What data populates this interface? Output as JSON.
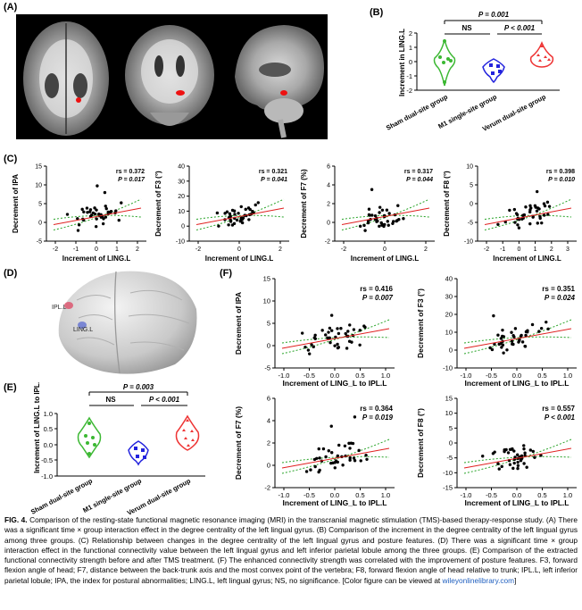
{
  "panels": {
    "A": "(A)",
    "B": "(B)",
    "C": "(C)",
    "D": "(D)",
    "E": "(E)",
    "F": "(F)"
  },
  "colors": {
    "green": "#3cb833",
    "blue": "#2222dd",
    "red": "#ee3333",
    "fitline": "#e02020",
    "ci": "#27a327"
  },
  "panel_b": {
    "ylabel": "Increment in LING.L",
    "yticks": [
      "-2",
      "-1",
      "0",
      "1",
      "2"
    ],
    "groups": [
      "Sham dual-site group",
      "M1 single-site group",
      "Verum dual-site group"
    ],
    "sig_top": "P = 0.001",
    "sig_left": "NS",
    "sig_right": "P < 0.001"
  },
  "panel_d": {
    "label1": "IPL.L",
    "label2": "LING.L"
  },
  "panel_e": {
    "ylabel": "Increment of LING.L to IPL.L",
    "yticks": [
      "1.0",
      "0.5",
      "0.0",
      "-0.5",
      "-1.0"
    ],
    "groups": [
      "Sham dual-site group",
      "M1 single-site group",
      "Verum dual-site group"
    ],
    "sig_top": "P = 0.003",
    "sig_left": "NS",
    "sig_right": "P < 0.001"
  },
  "panel_c": [
    {
      "ylabel": "Decrement of IPA",
      "xlabel": "Increment of LING.L",
      "yticks": [
        "15",
        "10",
        "5",
        "0",
        "-5"
      ],
      "xticks": [
        "-2",
        "-1",
        "0",
        "1",
        "2"
      ],
      "r": "rs = 0.372",
      "p": "P = 0.017"
    },
    {
      "ylabel": "Decrement of F3 (°)",
      "xlabel": "Increment of LING.L",
      "yticks": [
        "40",
        "30",
        "20",
        "10",
        "0",
        "-10"
      ],
      "xticks": [
        "-2",
        "0",
        "2"
      ],
      "r": "rs = 0.321",
      "p": "P = 0.041"
    },
    {
      "ylabel": "Decrement of F7 (%)",
      "xlabel": "Increment of LING.L",
      "yticks": [
        "6",
        "4",
        "2",
        "0",
        "-2"
      ],
      "xticks": [
        "-2",
        "0",
        "2"
      ],
      "r": "rs = 0.317",
      "p": "P = 0.044"
    },
    {
      "ylabel": "Decrement of F8 (°)",
      "xlabel": "Increment of LING.L",
      "yticks": [
        "10",
        "5",
        "0",
        "-5",
        "-10"
      ],
      "xticks": [
        "-2",
        "-1",
        "0",
        "1",
        "2",
        "3"
      ],
      "r": "rs = 0.398",
      "p": "P = 0.010"
    }
  ],
  "panel_f": [
    {
      "ylabel": "Decrement of IPA",
      "xlabel": "Increment of LING_L to IPL.L",
      "yticks": [
        "15",
        "10",
        "5",
        "0",
        "-5"
      ],
      "xticks": [
        "-1.0",
        "-0.5",
        "0.0",
        "0.5",
        "1.0"
      ],
      "r": "rs = 0.416",
      "p": "P = 0.007"
    },
    {
      "ylabel": "Decrement of F3 (°)",
      "xlabel": "Increment of LING_L to IPL.L",
      "yticks": [
        "40",
        "30",
        "20",
        "10",
        "0",
        "-10"
      ],
      "xticks": [
        "-1.0",
        "-0.5",
        "0.0",
        "0.5",
        "1.0"
      ],
      "r": "rs = 0.351",
      "p": "P = 0.024"
    },
    {
      "ylabel": "Decrement of F7 (%)",
      "xlabel": "Increment of LING_L to IPL.L",
      "yticks": [
        "6",
        "4",
        "2",
        "0",
        "-2"
      ],
      "xticks": [
        "-1.0",
        "-0.5",
        "0.0",
        "0.5",
        "1.0"
      ],
      "r": "rs = 0.364",
      "p": "P = 0.019"
    },
    {
      "ylabel": "Decrement of F8 (°)",
      "xlabel": "Increment of LING_L to IPL.L",
      "yticks": [
        "15",
        "10",
        "5",
        "0",
        "-5",
        "-10",
        "-15"
      ],
      "xticks": [
        "-1.0",
        "-0.5",
        "0.0",
        "0.5",
        "1.0"
      ],
      "r": "rs = 0.557",
      "p": "P < 0.001"
    }
  ],
  "caption": {
    "fig": "FIG. 4.",
    "text": " Comparison of the resting-state functional magnetic resonance imaging (MRI) in the transcranial magnetic stimulation (TMS)-based therapy-response study. (A) There was a significant time × group interaction effect in the degree centrality of the left lingual gyrus. (B) Comparison of the increment in the degree centrality of the left lingual gyrus among three groups. (C) Relationship between changes in the degree centrality of the left lingual gyrus and posture features. (D) There was a significant time × group interaction effect in the functional connectivity value between the left lingual gyrus and left inferior parietal lobule among the three groups. (E) Comparison of the extracted functional connectivity strength before and after TMS treatment. (F) The enhanced connectivity strength was correlated with the improvement of posture features. F3, forward flexion angle of head; F7, distance between the back-trunk axis and the most convex point of the vertebra; F8, forward flexion angle of head relative to trunk; IPL.L, left inferior parietal lobule; IPA, the index for postural abnormalities; LING.L, left lingual gyrus; NS, no significance. [Color figure can be viewed at ",
    "link": "wileyonlinelibrary.com",
    "end": "]"
  }
}
